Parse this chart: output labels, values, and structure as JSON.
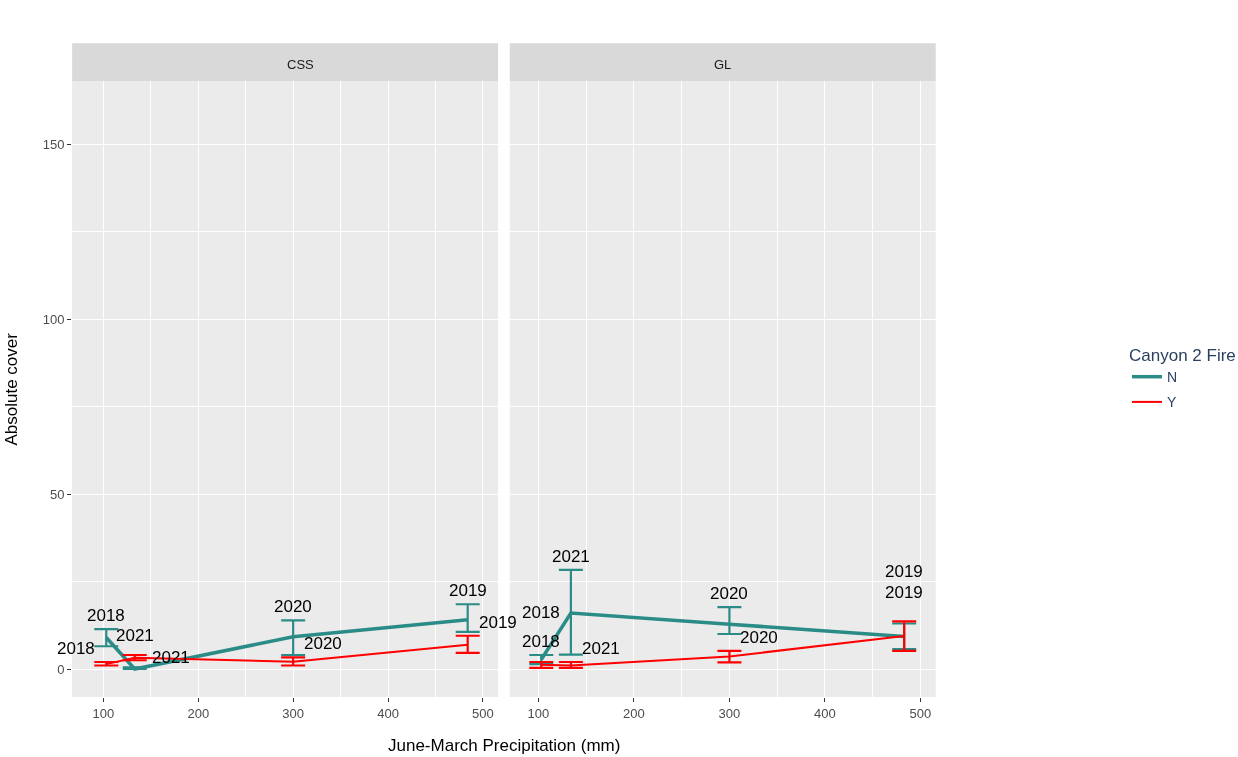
{
  "chart_data": [
    {
      "type": "line",
      "title": "CSS",
      "xlabel": "June-March Precipitation (mm)",
      "ylabel": "Absolute cover",
      "xlim": [
        67,
        516
      ],
      "ylim": [
        -8,
        168
      ],
      "xticks": [
        100,
        200,
        300,
        400,
        500
      ],
      "yticks": [
        0,
        50,
        100,
        150
      ],
      "grid": true,
      "legend": "right",
      "legend_title": "Canyon 2 Fire",
      "series": [
        {
          "name": "N",
          "color": "#2b8c87",
          "x": [
            103,
            133,
            300,
            484
          ],
          "values": [
            9,
            0,
            9.2,
            14.1
          ],
          "errors": [
            [
              6.5,
              11.4
            ],
            [
              0,
              0.5
            ],
            [
              4,
              13.9
            ],
            [
              10.6,
              18.5
            ]
          ]
        },
        {
          "name": "Y",
          "color": "#ff0000",
          "x": [
            103,
            133,
            300,
            484
          ],
          "values": [
            1.4,
            3.2,
            2.1,
            6.9
          ],
          "errors": [
            [
              1,
              2
            ],
            [
              2.5,
              4
            ],
            [
              1,
              3.3
            ],
            [
              4.6,
              9.5
            ]
          ]
        }
      ],
      "annotations": [
        {
          "text": "2018",
          "x": 103,
          "y": 11.4
        },
        {
          "text": "2021",
          "x": 133,
          "y": 0.5
        },
        {
          "text": "2020",
          "x": 300,
          "y": 13.9
        },
        {
          "text": "2019",
          "x": 484,
          "y": 18.5
        },
        {
          "text": "2018",
          "x": 103,
          "y": 2
        },
        {
          "text": "2021",
          "x": 133,
          "y": 4
        },
        {
          "text": "2020",
          "x": 300,
          "y": 3.3
        },
        {
          "text": "2019",
          "x": 484,
          "y": 9.5
        }
      ]
    },
    {
      "type": "line",
      "title": "GL",
      "xlim": [
        70,
        516
      ],
      "ylim": [
        -8,
        168
      ],
      "xticks": [
        100,
        200,
        300,
        400,
        500
      ],
      "yticks": [
        0,
        50,
        100,
        150
      ],
      "grid": true,
      "tick_labels": "x",
      "series": [
        {
          "color": "#2b8c87",
          "x": [
            103,
            134,
            300,
            483
          ],
          "values": [
            2.7,
            16,
            12.8,
            9.3
          ],
          "errors": [
            [
              1.4,
              4
            ],
            [
              4.1,
              28.3
            ],
            [
              10,
              17.7
            ],
            [
              5.7,
              13
            ]
          ]
        },
        {
          "color": "#ff0000",
          "x": [
            103,
            134,
            300,
            483
          ],
          "values": [
            1.2,
            1,
            3.6,
            9.4
          ],
          "errors": [
            [
              0.3,
              2
            ],
            [
              0.3,
              2
            ],
            [
              1.9,
              5.2
            ],
            [
              5.2,
              13.6
            ]
          ]
        }
      ],
      "annotations": [
        {
          "text": "2018",
          "x": 103,
          "y": 4
        },
        {
          "text": "2021",
          "x": 134,
          "y": 28.3
        },
        {
          "text": "2020",
          "x": 300,
          "y": 17.7
        },
        {
          "text": "2019",
          "x": 483,
          "y": 13
        },
        {
          "text": "2018",
          "x": 103,
          "y": 2
        },
        {
          "text": "2021",
          "x": 134,
          "y": 2
        },
        {
          "text": "2020",
          "x": 300,
          "y": 5.2
        },
        {
          "text": "2019",
          "x": 483,
          "y": 13.6
        }
      ]
    }
  ]
}
